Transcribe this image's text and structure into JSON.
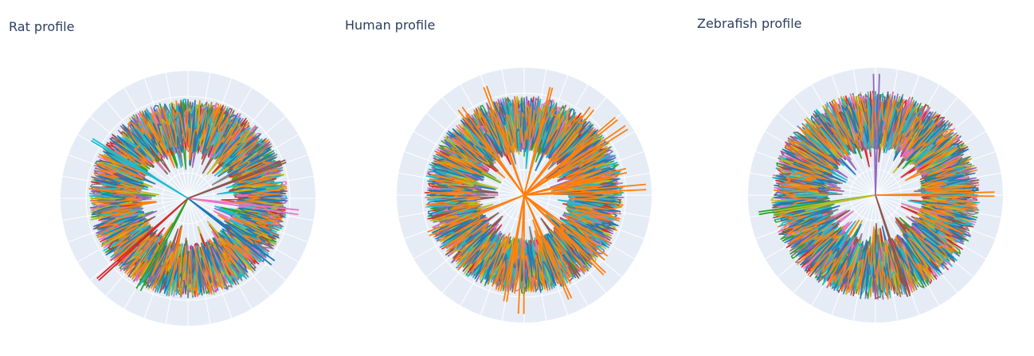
{
  "palette": [
    "#1f77b4",
    "#ff7f0e",
    "#2ca02c",
    "#d62728",
    "#9467bd",
    "#8c564b",
    "#e377c2",
    "#7f7f7f",
    "#bcbd22",
    "#17becf"
  ],
  "chart_style": {
    "plot_bg": "#e5ecf6",
    "grid_color": "#ffffff"
  },
  "chart_data": [
    {
      "type": "line",
      "polar": true,
      "title": "Rat profile",
      "grid": true,
      "radial_ticks_shown": false,
      "angular_ticks_shown": false
    },
    {
      "type": "line",
      "polar": true,
      "title": "Human profile",
      "grid": true,
      "radial_ticks_shown": false,
      "angular_ticks_shown": false
    },
    {
      "type": "line",
      "polar": true,
      "title": "Zebrafish profile",
      "grid": true,
      "radial_ticks_shown": false,
      "angular_ticks_shown": false
    }
  ]
}
